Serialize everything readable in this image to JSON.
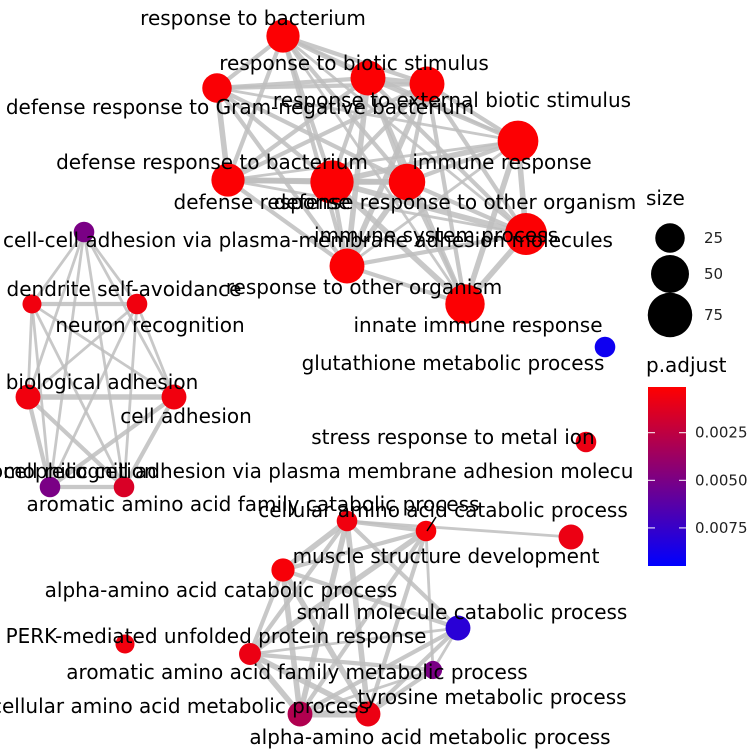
{
  "chart_data": {
    "type": "network",
    "nodes": [
      {
        "id": "n1",
        "label": "response to bacterium",
        "size": 35,
        "p_adjust": 0.0002
      },
      {
        "id": "n2",
        "label": "response to biotic stimulus",
        "size": 40,
        "p_adjust": 0.0002
      },
      {
        "id": "n3",
        "label": "response to external biotic stimulus",
        "size": 40,
        "p_adjust": 0.0002
      },
      {
        "id": "n4",
        "label": "defense response to Gram-negative bacterium",
        "size": 25,
        "p_adjust": 0.0003
      },
      {
        "id": "n5",
        "label": "immune response",
        "size": 60,
        "p_adjust": 0.0002
      },
      {
        "id": "n6",
        "label": "defense response to bacterium",
        "size": 35,
        "p_adjust": 0.0002
      },
      {
        "id": "n7",
        "label": "defense response",
        "size": 70,
        "p_adjust": 0.0002
      },
      {
        "id": "n8",
        "label": "defense response to other organism",
        "size": 45,
        "p_adjust": 0.0002
      },
      {
        "id": "n9",
        "label": "immune system process",
        "size": 65,
        "p_adjust": 0.0002
      },
      {
        "id": "n10",
        "label": "response to other organism",
        "size": 40,
        "p_adjust": 0.0002
      },
      {
        "id": "n11",
        "label": "innate immune response",
        "size": 55,
        "p_adjust": 0.0002
      },
      {
        "id": "n12",
        "label": "cell-cell adhesion via plasma-membrane adhesion molecules",
        "size": 8,
        "p_adjust": 0.005
      },
      {
        "id": "n13",
        "label": "dendrite self-avoidance",
        "size": 6,
        "p_adjust": 0.0006
      },
      {
        "id": "n14",
        "label": "neuron recognition",
        "size": 8,
        "p_adjust": 0.0006
      },
      {
        "id": "n15",
        "label": "biological adhesion",
        "size": 15,
        "p_adjust": 0.0006
      },
      {
        "id": "n16",
        "label": "cell adhesion",
        "size": 15,
        "p_adjust": 0.0006
      },
      {
        "id": "n17",
        "label": "homophilic cell adhesion via plasma membrane adhesion molecules",
        "size": 8,
        "p_adjust": 0.005
      },
      {
        "id": "n18",
        "label": "cell recognition",
        "size": 8,
        "p_adjust": 0.0015
      },
      {
        "id": "n19",
        "label": "glutathione metabolic process",
        "size": 8,
        "p_adjust": 0.009
      },
      {
        "id": "n20",
        "label": "stress response to metal ion",
        "size": 8,
        "p_adjust": 0.0008
      },
      {
        "id": "n21",
        "label": "muscle structure development",
        "size": 15,
        "p_adjust": 0.0008
      },
      {
        "id": "n22",
        "label": "cellular amino acid catabolic process",
        "size": 8,
        "p_adjust": 0.0006
      },
      {
        "id": "n23",
        "label": "aromatic amino acid family catabolic process",
        "size": 8,
        "p_adjust": 0.0004
      },
      {
        "id": "n24",
        "label": "alpha-amino acid catabolic process",
        "size": 12,
        "p_adjust": 0.0004
      },
      {
        "id": "n25",
        "label": "small molecule catabolic process",
        "size": 15,
        "p_adjust": 0.008
      },
      {
        "id": "n26",
        "label": "PERK-mediated unfolded protein response",
        "size": 6,
        "p_adjust": 0.0006
      },
      {
        "id": "n27",
        "label": "aromatic amino acid family metabolic process",
        "size": 10,
        "p_adjust": 0.0008
      },
      {
        "id": "n28",
        "label": "tyrosine metabolic process",
        "size": 5,
        "p_adjust": 0.005
      },
      {
        "id": "n29",
        "label": "cellular amino acid metabolic process",
        "size": 15,
        "p_adjust": 0.003
      },
      {
        "id": "n30",
        "label": "alpha-amino acid metabolic process",
        "size": 15,
        "p_adjust": 0.0008
      }
    ],
    "edges": [
      [
        "n1",
        "n2",
        3
      ],
      [
        "n1",
        "n3",
        3
      ],
      [
        "n1",
        "n4",
        3
      ],
      [
        "n1",
        "n6",
        3
      ],
      [
        "n1",
        "n7",
        3
      ],
      [
        "n1",
        "n8",
        3
      ],
      [
        "n1",
        "n10",
        3
      ],
      [
        "n1",
        "n5",
        2
      ],
      [
        "n1",
        "n9",
        2
      ],
      [
        "n1",
        "n11",
        2
      ],
      [
        "n2",
        "n3",
        4
      ],
      [
        "n2",
        "n4",
        3
      ],
      [
        "n2",
        "n5",
        3
      ],
      [
        "n2",
        "n6",
        3
      ],
      [
        "n2",
        "n7",
        3
      ],
      [
        "n2",
        "n8",
        3
      ],
      [
        "n2",
        "n9",
        3
      ],
      [
        "n2",
        "n10",
        4
      ],
      [
        "n2",
        "n11",
        3
      ],
      [
        "n3",
        "n4",
        3
      ],
      [
        "n3",
        "n5",
        3
      ],
      [
        "n3",
        "n6",
        3
      ],
      [
        "n3",
        "n7",
        3
      ],
      [
        "n3",
        "n8",
        3
      ],
      [
        "n3",
        "n9",
        3
      ],
      [
        "n3",
        "n10",
        4
      ],
      [
        "n3",
        "n11",
        3
      ],
      [
        "n4",
        "n6",
        4
      ],
      [
        "n4",
        "n7",
        3
      ],
      [
        "n4",
        "n8",
        3
      ],
      [
        "n4",
        "n10",
        3
      ],
      [
        "n4",
        "n5",
        2
      ],
      [
        "n5",
        "n7",
        4
      ],
      [
        "n5",
        "n8",
        3
      ],
      [
        "n5",
        "n9",
        4
      ],
      [
        "n5",
        "n10",
        2
      ],
      [
        "n5",
        "n11",
        4
      ],
      [
        "n6",
        "n7",
        4
      ],
      [
        "n6",
        "n8",
        4
      ],
      [
        "n6",
        "n10",
        3
      ],
      [
        "n6",
        "n5",
        2
      ],
      [
        "n6",
        "n9",
        2
      ],
      [
        "n7",
        "n8",
        4
      ],
      [
        "n7",
        "n9",
        4
      ],
      [
        "n7",
        "n10",
        3
      ],
      [
        "n7",
        "n11",
        4
      ],
      [
        "n8",
        "n9",
        3
      ],
      [
        "n8",
        "n10",
        4
      ],
      [
        "n8",
        "n11",
        3
      ],
      [
        "n9",
        "n10",
        3
      ],
      [
        "n9",
        "n11",
        4
      ],
      [
        "n10",
        "n11",
        3
      ],
      [
        "n12",
        "n13",
        2
      ],
      [
        "n12",
        "n14",
        2
      ],
      [
        "n12",
        "n15",
        2
      ],
      [
        "n12",
        "n16",
        2
      ],
      [
        "n12",
        "n17",
        2
      ],
      [
        "n12",
        "n18",
        2
      ],
      [
        "n13",
        "n14",
        3
      ],
      [
        "n13",
        "n15",
        2
      ],
      [
        "n13",
        "n16",
        2
      ],
      [
        "n13",
        "n17",
        2
      ],
      [
        "n13",
        "n18",
        2
      ],
      [
        "n14",
        "n15",
        2
      ],
      [
        "n14",
        "n16",
        2
      ],
      [
        "n14",
        "n17",
        2
      ],
      [
        "n14",
        "n18",
        2
      ],
      [
        "n15",
        "n16",
        4
      ],
      [
        "n15",
        "n17",
        3
      ],
      [
        "n15",
        "n18",
        3
      ],
      [
        "n16",
        "n17",
        3
      ],
      [
        "n16",
        "n18",
        3
      ],
      [
        "n17",
        "n18",
        3
      ],
      [
        "n22",
        "n23",
        3
      ],
      [
        "n22",
        "n24",
        4
      ],
      [
        "n22",
        "n25",
        3
      ],
      [
        "n22",
        "n27",
        3
      ],
      [
        "n22",
        "n29",
        4
      ],
      [
        "n22",
        "n30",
        4
      ],
      [
        "n22",
        "n21",
        2
      ],
      [
        "n23",
        "n24",
        3
      ],
      [
        "n23",
        "n27",
        4
      ],
      [
        "n23",
        "n28",
        2
      ],
      [
        "n23",
        "n29",
        3
      ],
      [
        "n23",
        "n30",
        3
      ],
      [
        "n24",
        "n25",
        3
      ],
      [
        "n24",
        "n27",
        3
      ],
      [
        "n24",
        "n29",
        4
      ],
      [
        "n24",
        "n30",
        4
      ],
      [
        "n25",
        "n27",
        2
      ],
      [
        "n25",
        "n29",
        3
      ],
      [
        "n25",
        "n30",
        3
      ],
      [
        "n25",
        "n28",
        2
      ],
      [
        "n27",
        "n28",
        3
      ],
      [
        "n27",
        "n29",
        4
      ],
      [
        "n27",
        "n30",
        4
      ],
      [
        "n28",
        "n29",
        2
      ],
      [
        "n28",
        "n30",
        3
      ],
      [
        "n29",
        "n30",
        5
      ]
    ],
    "legend": {
      "size_title": "size",
      "size_breaks": [
        25,
        50,
        75
      ],
      "color_title": "p.adjust",
      "color_breaks": [
        0.0025,
        0.005,
        0.0075
      ],
      "color_breaks_labels": [
        "0.0025",
        "0.0050",
        "0.0075"
      ],
      "color_range": [
        0.0001,
        0.0095
      ],
      "color_low": "#FF0000",
      "color_high": "#0000FF",
      "edge_color": "#BEBEBE",
      "placement": "right"
    }
  }
}
